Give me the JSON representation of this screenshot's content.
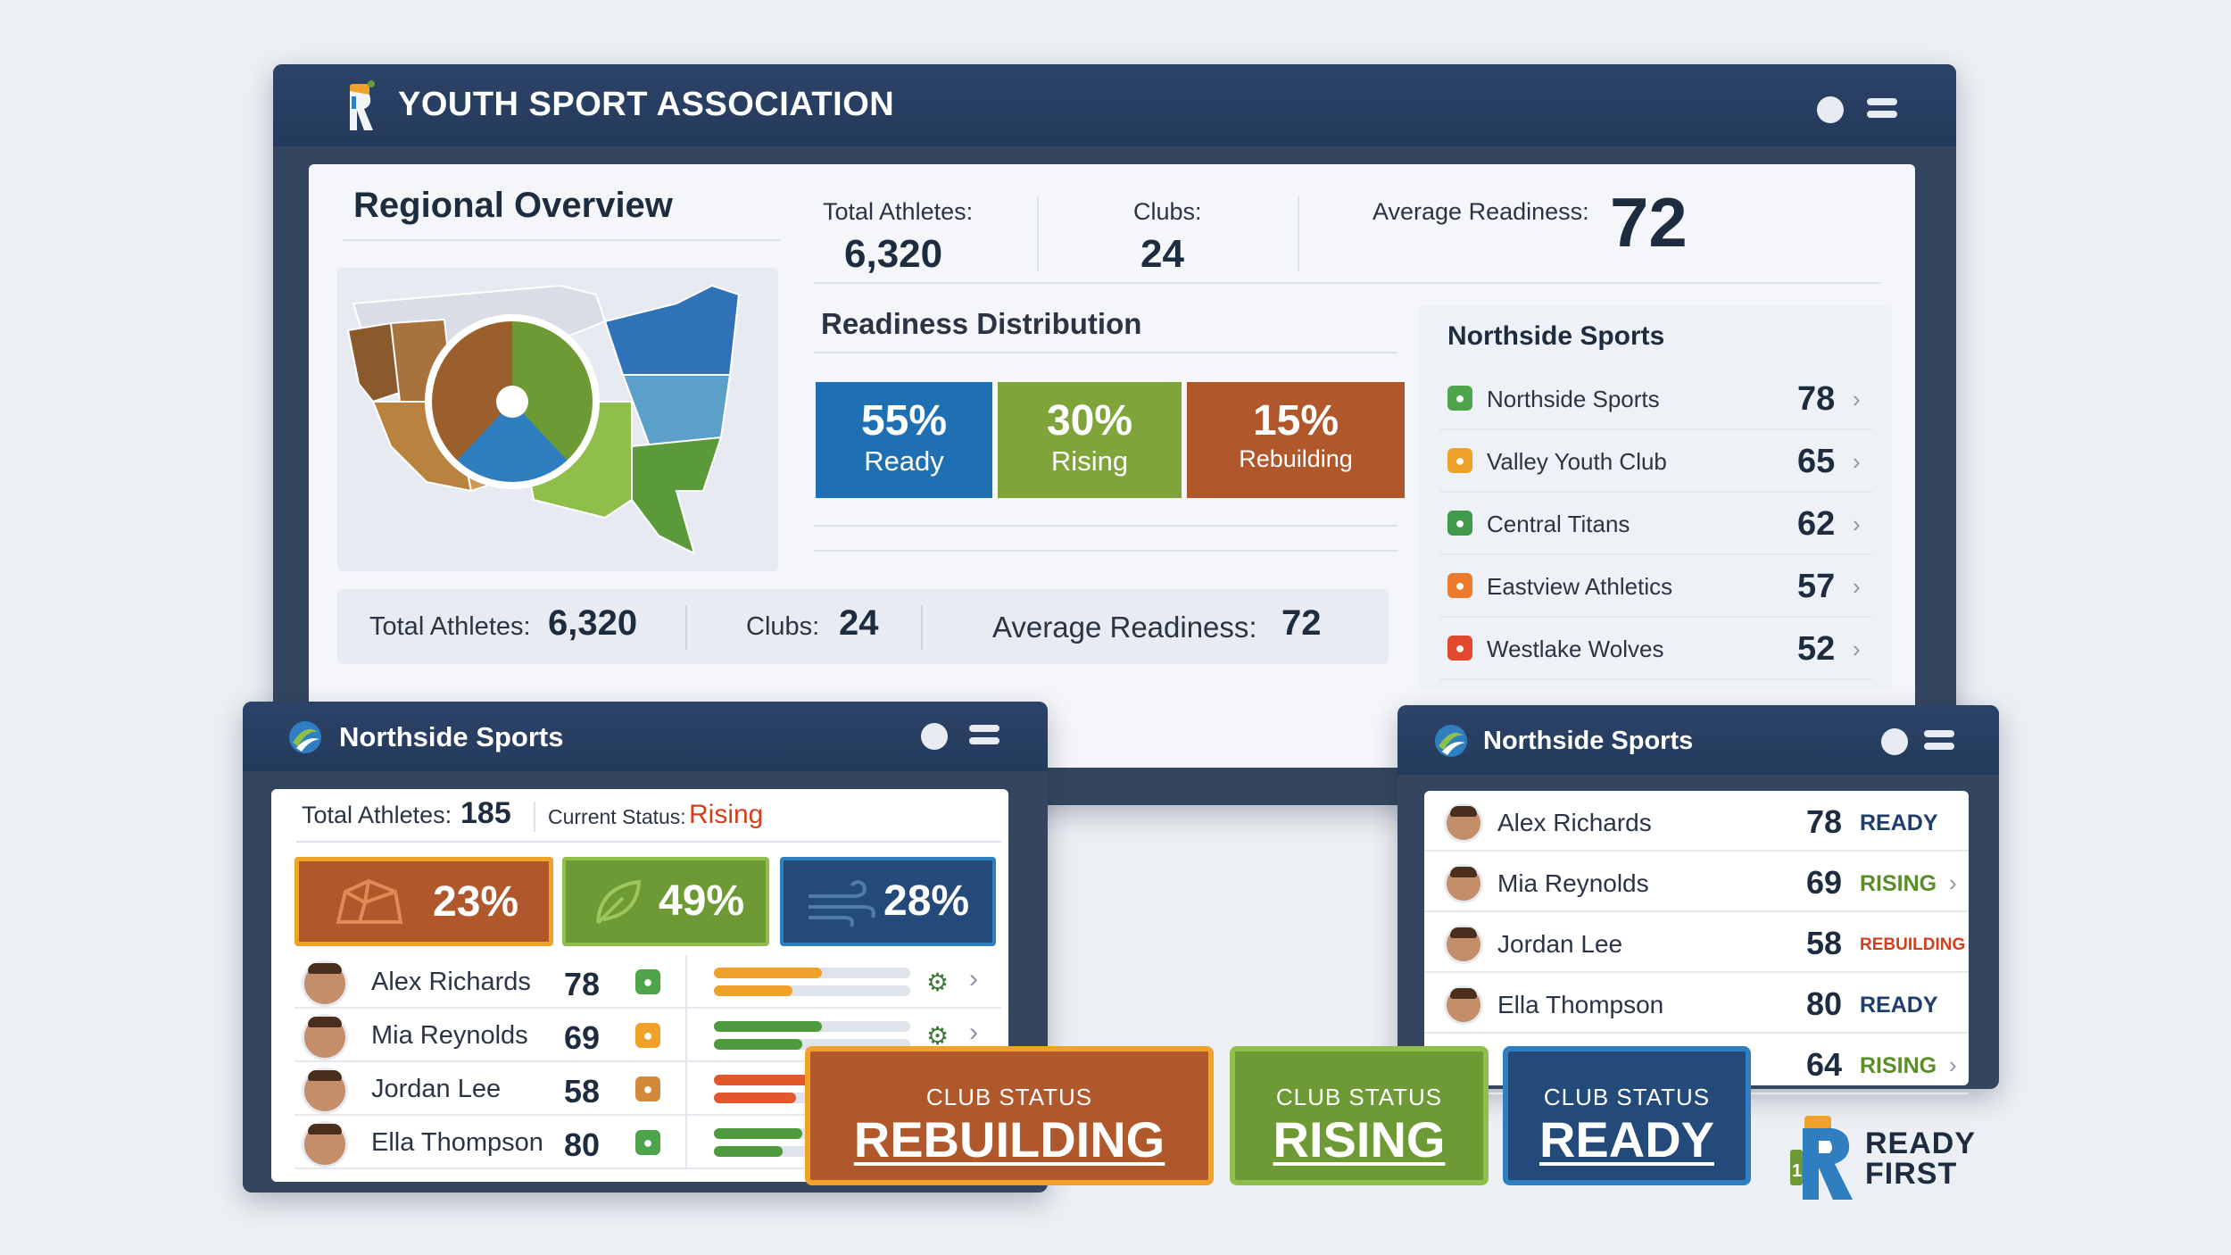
{
  "main_window": {
    "title": "YOUTH SPORT ASSOCIATION",
    "overview_title": "Regional Overview",
    "stats": {
      "total_athletes_label": "Total Athletes:",
      "total_athletes": "6,320",
      "clubs_label": "Clubs:",
      "clubs": "24",
      "avg_readiness_label": "Average Readiness:",
      "avg_readiness": "72"
    },
    "distribution_title": "Readiness Distribution",
    "distribution": [
      {
        "percent": "55%",
        "label": "Ready",
        "value": 55,
        "color": "#1f6fb3"
      },
      {
        "percent": "30%",
        "label": "Rising",
        "value": 30,
        "color": "#7ea43a"
      },
      {
        "percent": "15%",
        "label": "Rebuilding",
        "value": 15,
        "color": "#b0572b"
      }
    ],
    "clubs_panel": {
      "title": "Northside Sports",
      "items": [
        {
          "name": "Northside Sports",
          "score": "78",
          "color": "#4ea44a"
        },
        {
          "name": "Valley Youth Club",
          "score": "65",
          "color": "#f0a12a"
        },
        {
          "name": "Central Titans",
          "score": "62",
          "color": "#3f9a4c"
        },
        {
          "name": "Eastview Athletics",
          "score": "57",
          "color": "#ee7a2c"
        },
        {
          "name": "Westlake Wolves",
          "score": "52",
          "color": "#e2482b"
        }
      ]
    }
  },
  "left_window": {
    "title": "Northside Sports",
    "total_athletes_label": "Total Athletes:",
    "total_athletes": "185",
    "status_label": "Current Status:",
    "status": "Rising",
    "tiles": [
      {
        "percent": "23%",
        "value": 23,
        "icon": "rock-icon",
        "color": "#b0572b"
      },
      {
        "percent": "49%",
        "value": 49,
        "icon": "leaf-icon",
        "color": "#6e9a35"
      },
      {
        "percent": "28%",
        "value": 28,
        "icon": "wind-icon",
        "color": "#234a78"
      }
    ],
    "athletes": [
      {
        "name": "Alex Richards",
        "score": "78",
        "tag_color": "#4ea44a",
        "bar1": 0.55,
        "bar2": 0.4,
        "bar_color": "#f0a12a"
      },
      {
        "name": "Mia Reynolds",
        "score": "69",
        "tag_color": "#f0a12a",
        "bar1": 0.55,
        "bar2": 0.45,
        "bar_color": "#4e9a3e"
      },
      {
        "name": "Jordan Lee",
        "score": "58",
        "tag_color": "#d08a3a",
        "bar1": 0.5,
        "bar2": 0.42,
        "bar_color": "#e2572b"
      },
      {
        "name": "Ella Thompson",
        "score": "80",
        "tag_color": "#4ea44a",
        "bar1": 0.45,
        "bar2": 0.35,
        "bar_color": "#4e9a3e"
      }
    ]
  },
  "right_window": {
    "title": "Northside Sports",
    "athletes": [
      {
        "name": "Alex Richards",
        "score": "78",
        "status": "READY",
        "color": "#1e3f6e"
      },
      {
        "name": "Mia Reynolds",
        "score": "69",
        "status": "RISING",
        "color": "#5a8e2a"
      },
      {
        "name": "Jordan Lee",
        "score": "58",
        "status": "REBUILDING",
        "color": "#d0401f"
      },
      {
        "name": "Ella Thompson",
        "score": "80",
        "status": "READY",
        "color": "#1e3f6e"
      },
      {
        "name": "",
        "score": "64",
        "status": "RISING",
        "color": "#5a8e2a"
      }
    ]
  },
  "status_badges": [
    {
      "caption": "CLUB STATUS",
      "value": "REBUILDING",
      "color": "#b0572b",
      "border": "#f0a12a"
    },
    {
      "caption": "CLUB STATUS",
      "value": "RISING",
      "color": "#6e9a35",
      "border": "#8fbf4a"
    },
    {
      "caption": "CLUB STATUS",
      "value": "READY",
      "color": "#234a78",
      "border": "#2f7fc0"
    }
  ],
  "brand": {
    "line1": "READY",
    "line2": "FIRST"
  }
}
